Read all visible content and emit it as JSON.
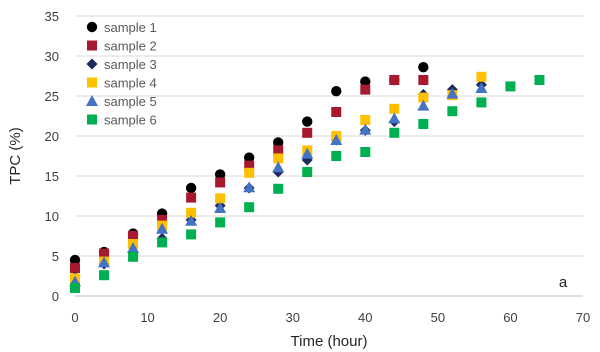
{
  "chart_data": {
    "type": "scatter",
    "title": "",
    "xlabel": "Time (hour)",
    "ylabel": "TPC (%)",
    "xlim": [
      0,
      70
    ],
    "ylim": [
      0,
      35
    ],
    "x_ticks": [
      0,
      10,
      20,
      30,
      40,
      50,
      60,
      70
    ],
    "y_ticks": [
      0,
      5,
      10,
      15,
      20,
      25,
      30,
      35
    ],
    "grid": "horizontal-major",
    "legend_position": "top-left",
    "annotation": "a",
    "series": [
      {
        "name": "sample 1",
        "marker": "circle",
        "color": "#000000",
        "points": [
          [
            0,
            4.5
          ],
          [
            4,
            5.5
          ],
          [
            8,
            7.8
          ],
          [
            12,
            10.3
          ],
          [
            16,
            13.5
          ],
          [
            20,
            15.2
          ],
          [
            24,
            17.3
          ],
          [
            28,
            19.2
          ],
          [
            32,
            21.8
          ],
          [
            36,
            25.6
          ],
          [
            40,
            26.8
          ],
          [
            44,
            27.0
          ],
          [
            48,
            28.6
          ]
        ]
      },
      {
        "name": "sample 2",
        "marker": "square",
        "color": "#a6192e",
        "points": [
          [
            0,
            3.5
          ],
          [
            4,
            5.3
          ],
          [
            8,
            7.5
          ],
          [
            12,
            9.5
          ],
          [
            16,
            12.3
          ],
          [
            20,
            14.2
          ],
          [
            24,
            16.3
          ],
          [
            28,
            18.2
          ],
          [
            32,
            20.4
          ],
          [
            36,
            23.0
          ],
          [
            40,
            25.8
          ],
          [
            44,
            27.0
          ],
          [
            48,
            27.0
          ]
        ]
      },
      {
        "name": "sample 3",
        "marker": "diamond",
        "color": "#1f2a5c",
        "points": [
          [
            0,
            2.4
          ],
          [
            4,
            4.0
          ],
          [
            8,
            6.2
          ],
          [
            12,
            7.2
          ],
          [
            16,
            9.5
          ],
          [
            20,
            11.3
          ],
          [
            24,
            13.5
          ],
          [
            28,
            15.5
          ],
          [
            32,
            17.0
          ],
          [
            36,
            19.5
          ],
          [
            40,
            20.7
          ],
          [
            44,
            21.8
          ],
          [
            48,
            25.2
          ],
          [
            52,
            25.8
          ],
          [
            56,
            26.4
          ]
        ]
      },
      {
        "name": "sample 4",
        "marker": "square",
        "color": "#ffc000",
        "points": [
          [
            0,
            2.2
          ],
          [
            4,
            4.3
          ],
          [
            8,
            6.5
          ],
          [
            12,
            8.8
          ],
          [
            16,
            10.4
          ],
          [
            20,
            12.2
          ],
          [
            24,
            15.4
          ],
          [
            28,
            17.2
          ],
          [
            32,
            18.2
          ],
          [
            36,
            20.0
          ],
          [
            40,
            22.0
          ],
          [
            44,
            23.4
          ],
          [
            48,
            24.8
          ],
          [
            52,
            25.1
          ],
          [
            56,
            27.4
          ]
        ]
      },
      {
        "name": "sample 5",
        "marker": "triangle",
        "color": "#4472c4",
        "points": [
          [
            0,
            1.8
          ],
          [
            4,
            4.2
          ],
          [
            8,
            6.0
          ],
          [
            12,
            8.4
          ],
          [
            16,
            9.4
          ],
          [
            20,
            11.0
          ],
          [
            24,
            13.6
          ],
          [
            28,
            16.1
          ],
          [
            32,
            17.8
          ],
          [
            36,
            19.5
          ],
          [
            40,
            20.8
          ],
          [
            44,
            22.2
          ],
          [
            48,
            23.8
          ],
          [
            52,
            25.3
          ],
          [
            56,
            26.0
          ]
        ]
      },
      {
        "name": "sample 6",
        "marker": "square",
        "color": "#00b050",
        "points": [
          [
            0,
            1.0
          ],
          [
            4,
            2.6
          ],
          [
            8,
            4.9
          ],
          [
            12,
            6.7
          ],
          [
            16,
            7.7
          ],
          [
            20,
            9.2
          ],
          [
            24,
            11.1
          ],
          [
            28,
            13.4
          ],
          [
            32,
            15.5
          ],
          [
            36,
            17.5
          ],
          [
            40,
            18.0
          ],
          [
            44,
            20.4
          ],
          [
            48,
            21.5
          ],
          [
            52,
            23.1
          ],
          [
            56,
            24.2
          ],
          [
            60,
            26.2
          ],
          [
            64,
            27.0
          ]
        ]
      }
    ]
  }
}
